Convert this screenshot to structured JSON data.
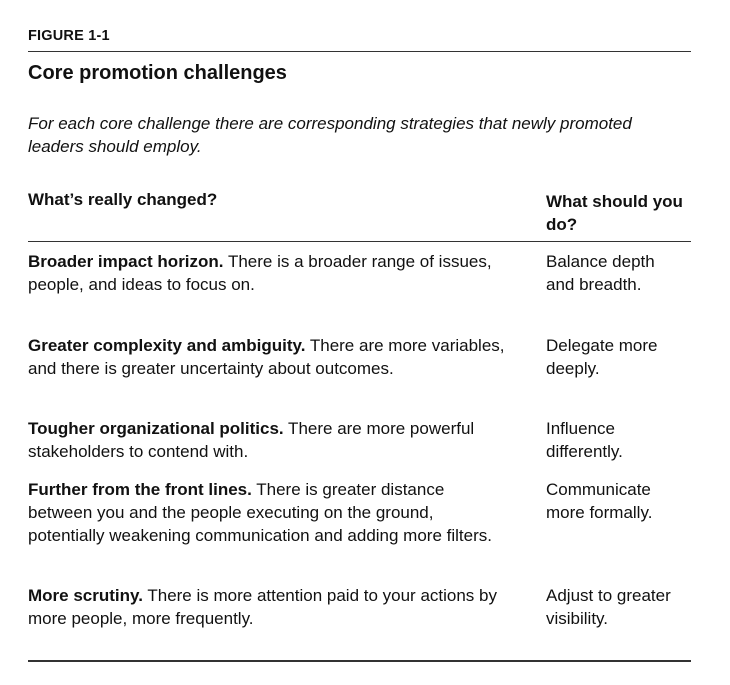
{
  "figure_label": "FIGURE 1-1",
  "title": "Core promotion challenges",
  "subtitle": "For each core challenge there are corresponding strategies that newly promoted leaders should employ.",
  "columns": {
    "left": "What’s really changed?",
    "right": "What should you do?"
  },
  "rows": [
    {
      "heading": "Broader impact horizon.",
      "text": " There is a broader range of issues, people, and ideas to focus on.",
      "action": "Balance depth and breadth."
    },
    {
      "heading": "Greater complexity and ambiguity.",
      "text": " There are more variables, and there is greater uncertainty about outcomes.",
      "action": "Delegate more deeply."
    },
    {
      "heading": "Tougher organizational politics.",
      "text": " There are more powerful stakeholders to contend with.",
      "action": "Influence differently."
    },
    {
      "heading": "Further from the front lines.",
      "text": " There is greater distance between you and the people executing on the ground, potentially weakening communication and adding more filters.",
      "action": "Communicate more formally."
    },
    {
      "heading": "More scrutiny.",
      "text": " There is more attention paid to your actions by more people, more frequently.",
      "action": "Adjust to greater visibility."
    }
  ]
}
